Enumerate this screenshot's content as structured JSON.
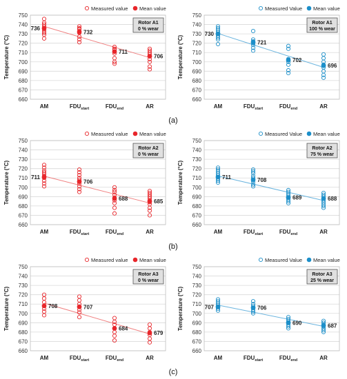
{
  "figure": {
    "row_labels": [
      "(a)",
      "(b)",
      "(c)"
    ]
  },
  "colors": {
    "red": "#e8262b",
    "blue": "#1c8fc9",
    "red_trend": "#f08080",
    "blue_trend": "#6ab4de",
    "grid": "#d9d9d9",
    "infobox_bg": "#e0e0e0"
  },
  "chart_data": [
    {
      "type": "scatter",
      "theme": "red",
      "info_box": [
        "Rotor A1",
        "0 % wear"
      ],
      "legend": [
        "Measured value",
        "Mean value"
      ],
      "legend_position": "top-right",
      "ylabel": "Temperature (°C)",
      "ylim": [
        660,
        750
      ],
      "yticks": [
        660,
        670,
        680,
        690,
        700,
        710,
        720,
        730,
        740,
        750
      ],
      "categories": [
        [
          "AM",
          ""
        ],
        [
          "FDU",
          "start"
        ],
        [
          "FDU",
          "end"
        ],
        [
          "AR",
          ""
        ]
      ],
      "measured": [
        [
          725,
          729,
          731,
          733,
          735,
          736,
          738,
          740,
          742,
          746
        ],
        [
          721,
          724,
          727,
          731,
          733,
          735,
          736,
          738
        ],
        [
          698,
          700,
          704,
          709,
          711,
          713,
          714,
          716
        ],
        [
          692,
          695,
          700,
          703,
          706,
          708,
          710,
          712,
          714
        ]
      ],
      "means": [
        736,
        732,
        711,
        706
      ],
      "mean_labels": [
        "736",
        "732",
        "711",
        "706"
      ],
      "label_side": [
        "left",
        "right",
        "right",
        "right"
      ],
      "grid": true
    },
    {
      "type": "scatter",
      "theme": "blue",
      "info_box": [
        "Rotor A1",
        "100 % wear"
      ],
      "legend": [
        "Measured Value",
        "Mean value"
      ],
      "legend_position": "top-right",
      "ylabel": "Temperature (°C)",
      "ylim": [
        660,
        750
      ],
      "yticks": [
        660,
        670,
        680,
        690,
        700,
        710,
        720,
        730,
        740,
        750
      ],
      "categories": [
        [
          "AM",
          ""
        ],
        [
          "FDU",
          "start"
        ],
        [
          "FDU",
          "end"
        ],
        [
          "AR",
          ""
        ]
      ],
      "measured": [
        [
          719,
          724,
          726,
          728,
          730,
          732,
          734,
          736,
          738
        ],
        [
          712,
          715,
          718,
          720,
          722,
          724,
          733
        ],
        [
          688,
          691,
          697,
          700,
          703,
          714,
          717
        ],
        [
          683,
          686,
          690,
          694,
          697,
          700,
          704,
          708
        ]
      ],
      "means": [
        730,
        721,
        702,
        696
      ],
      "mean_labels": [
        "730",
        "721",
        "702",
        "696"
      ],
      "label_side": [
        "left",
        "right",
        "right",
        "right"
      ],
      "grid": true
    },
    {
      "type": "scatter",
      "theme": "red",
      "info_box": [
        "Rotor A2",
        "0 % wear"
      ],
      "legend": [
        "Measured value",
        "Mean value"
      ],
      "legend_position": "top-right",
      "ylabel": "Temperature (°C)",
      "ylim": [
        660,
        750
      ],
      "yticks": [
        660,
        670,
        680,
        690,
        700,
        710,
        720,
        730,
        740,
        750
      ],
      "categories": [
        [
          "AM",
          ""
        ],
        [
          "FDU",
          "start"
        ],
        [
          "FDU",
          "end"
        ],
        [
          "AR",
          ""
        ]
      ],
      "measured": [
        [
          701,
          704,
          707,
          710,
          712,
          714,
          716,
          718,
          721,
          724
        ],
        [
          695,
          698,
          701,
          704,
          706,
          708,
          710,
          713,
          716,
          719
        ],
        [
          672,
          678,
          683,
          686,
          689,
          692,
          695,
          697,
          700
        ],
        [
          670,
          675,
          678,
          682,
          684,
          686,
          688,
          690,
          692,
          694,
          696
        ]
      ],
      "means": [
        711,
        706,
        688,
        685
      ],
      "mean_labels": [
        "711",
        "706",
        "688",
        "685"
      ],
      "label_side": [
        "left",
        "right",
        "right",
        "right"
      ],
      "grid": true
    },
    {
      "type": "scatter",
      "theme": "blue",
      "info_box": [
        "Rotor A2",
        "75 % wear"
      ],
      "legend": [
        "Measured Value",
        "Mean value"
      ],
      "legend_position": "top-right",
      "ylabel": "Temperature (°C)",
      "ylim": [
        660,
        750
      ],
      "yticks": [
        660,
        670,
        680,
        690,
        700,
        710,
        720,
        730,
        740,
        750
      ],
      "categories": [
        [
          "AM",
          ""
        ],
        [
          "FDU",
          "start"
        ],
        [
          "FDU",
          "end"
        ],
        [
          "AR",
          ""
        ]
      ],
      "measured": [
        [
          705,
          707,
          709,
          711,
          713,
          715,
          717,
          719,
          721
        ],
        [
          701,
          703,
          706,
          708,
          710,
          712,
          715,
          717,
          719
        ],
        [
          683,
          685,
          687,
          689,
          691,
          693,
          695,
          697
        ],
        [
          678,
          680,
          682,
          684,
          686,
          688,
          690,
          692,
          694
        ]
      ],
      "means": [
        711,
        708,
        689,
        688
      ],
      "mean_labels": [
        "711",
        "708",
        "689",
        "688"
      ],
      "label_side": [
        "right",
        "right",
        "right",
        "right"
      ],
      "grid": true
    },
    {
      "type": "scatter",
      "theme": "red",
      "info_box": [
        "Rotor A3",
        "0 % wear"
      ],
      "legend": [
        "Measured value",
        "Mean value"
      ],
      "legend_position": "top-right",
      "ylabel": "Temperature (°C)",
      "ylim": [
        660,
        750
      ],
      "yticks": [
        660,
        670,
        680,
        690,
        700,
        710,
        720,
        730,
        740,
        750
      ],
      "categories": [
        [
          "AM",
          ""
        ],
        [
          "FDU",
          "start"
        ],
        [
          "FDU",
          "end"
        ],
        [
          "AR",
          ""
        ]
      ],
      "measured": [
        [
          698,
          702,
          705,
          708,
          712,
          716,
          720
        ],
        [
          696,
          701,
          704,
          707,
          710,
          714,
          718
        ],
        [
          671,
          676,
          680,
          684,
          688,
          691,
          695
        ],
        [
          669,
          673,
          677,
          680,
          684,
          688
        ]
      ],
      "means": [
        708,
        707,
        684,
        679
      ],
      "mean_labels": [
        "708",
        "707",
        "684",
        "679"
      ],
      "label_side": [
        "right",
        "right",
        "right",
        "right"
      ],
      "grid": true
    },
    {
      "type": "scatter",
      "theme": "blue",
      "info_box": [
        "Rotor A3",
        "25 % wear"
      ],
      "legend": [
        "Measured Value",
        "Mean value"
      ],
      "legend_position": "top-right",
      "ylabel": "Temperature (°C)",
      "ylim": [
        660,
        750
      ],
      "yticks": [
        660,
        670,
        680,
        690,
        700,
        710,
        720,
        730,
        740,
        750
      ],
      "categories": [
        [
          "AM",
          ""
        ],
        [
          "FDU",
          "start"
        ],
        [
          "FDU",
          "end"
        ],
        [
          "AR",
          ""
        ]
      ],
      "measured": [
        [
          703,
          705,
          707,
          709,
          711,
          713,
          715
        ],
        [
          700,
          702,
          704,
          706,
          708,
          710,
          713
        ],
        [
          684,
          686,
          688,
          690,
          692,
          694,
          696
        ],
        [
          680,
          682,
          684,
          686,
          688,
          690,
          692
        ]
      ],
      "means": [
        707,
        706,
        690,
        687
      ],
      "mean_labels": [
        "707",
        "706",
        "690",
        "687"
      ],
      "label_side": [
        "left",
        "right",
        "right",
        "right"
      ],
      "grid": true
    }
  ]
}
